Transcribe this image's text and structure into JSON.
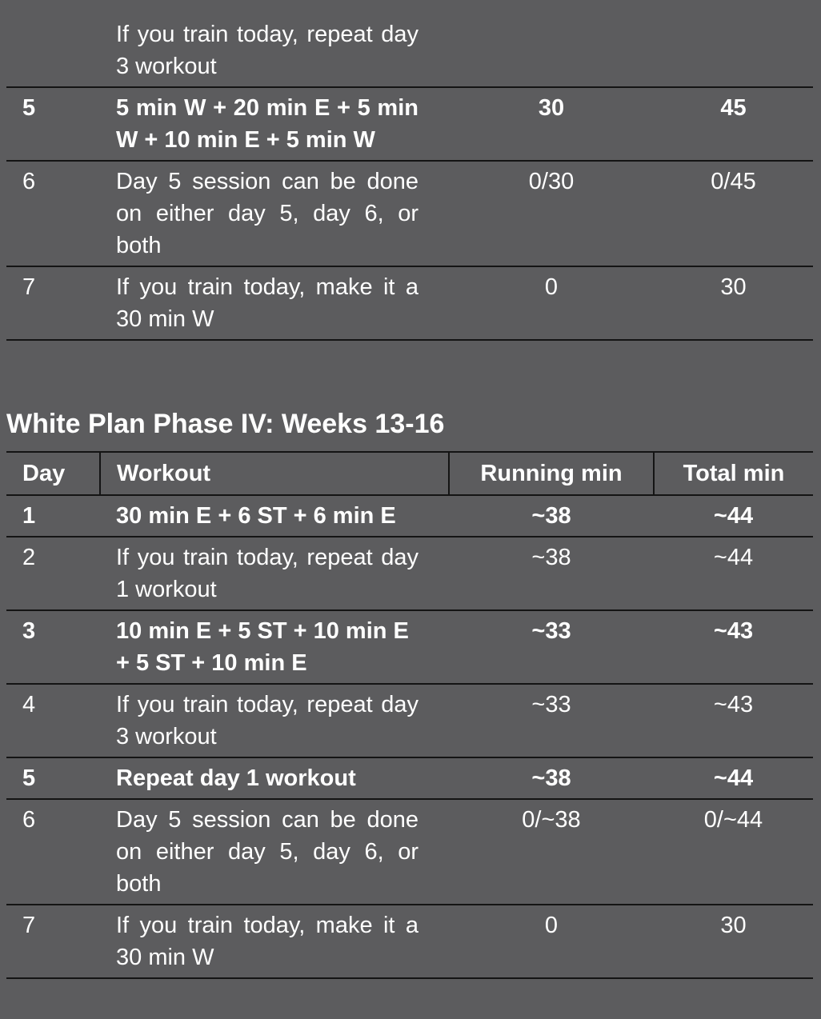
{
  "table_top": {
    "rows": [
      {
        "day": "",
        "workout": "If you train today, repeat day 3 workout",
        "running": "",
        "total": "",
        "bold": false
      },
      {
        "day": "5",
        "workout": "5 min W + 20 min E + 5 min W + 10 min E + 5 min W",
        "running": "30",
        "total": "45",
        "bold": true
      },
      {
        "day": "6",
        "workout": "Day 5 session can be done on either day 5, day 6, or both",
        "running": "0/30",
        "total": "0/45",
        "bold": false
      },
      {
        "day": "7",
        "workout": "If you train today, make it a 30 min W",
        "running": "0",
        "total": "30",
        "bold": false
      }
    ]
  },
  "phase4": {
    "title": "White Plan Phase IV: Weeks 13-16",
    "headers": {
      "day": "Day",
      "workout": "Workout",
      "running": "Running min",
      "total": "Total min"
    },
    "rows": [
      {
        "day": "1",
        "workout": "30 min E + 6 ST + 6 min E",
        "running": "~38",
        "total": "~44",
        "bold": true
      },
      {
        "day": "2",
        "workout": "If you train today, repeat day 1 workout",
        "running": "~38",
        "total": "~44",
        "bold": false
      },
      {
        "day": "3",
        "workout": "10 min E + 5 ST + 10 min E + 5 ST + 10 min E",
        "running": "~33",
        "total": "~43",
        "bold": true
      },
      {
        "day": "4",
        "workout": "If you train today, repeat day 3 workout",
        "running": "~33",
        "total": "~43",
        "bold": false
      },
      {
        "day": "5",
        "workout": "Repeat day 1 workout",
        "running": "~38",
        "total": "~44",
        "bold": true
      },
      {
        "day": "6",
        "workout": "Day 5 session can be done on either day 5, day 6, or both",
        "running": "0/~38",
        "total": "0/~44",
        "bold": false
      },
      {
        "day": "7",
        "workout": "If you train today, make it a 30 min W",
        "running": "0",
        "total": "30",
        "bold": false
      }
    ]
  }
}
